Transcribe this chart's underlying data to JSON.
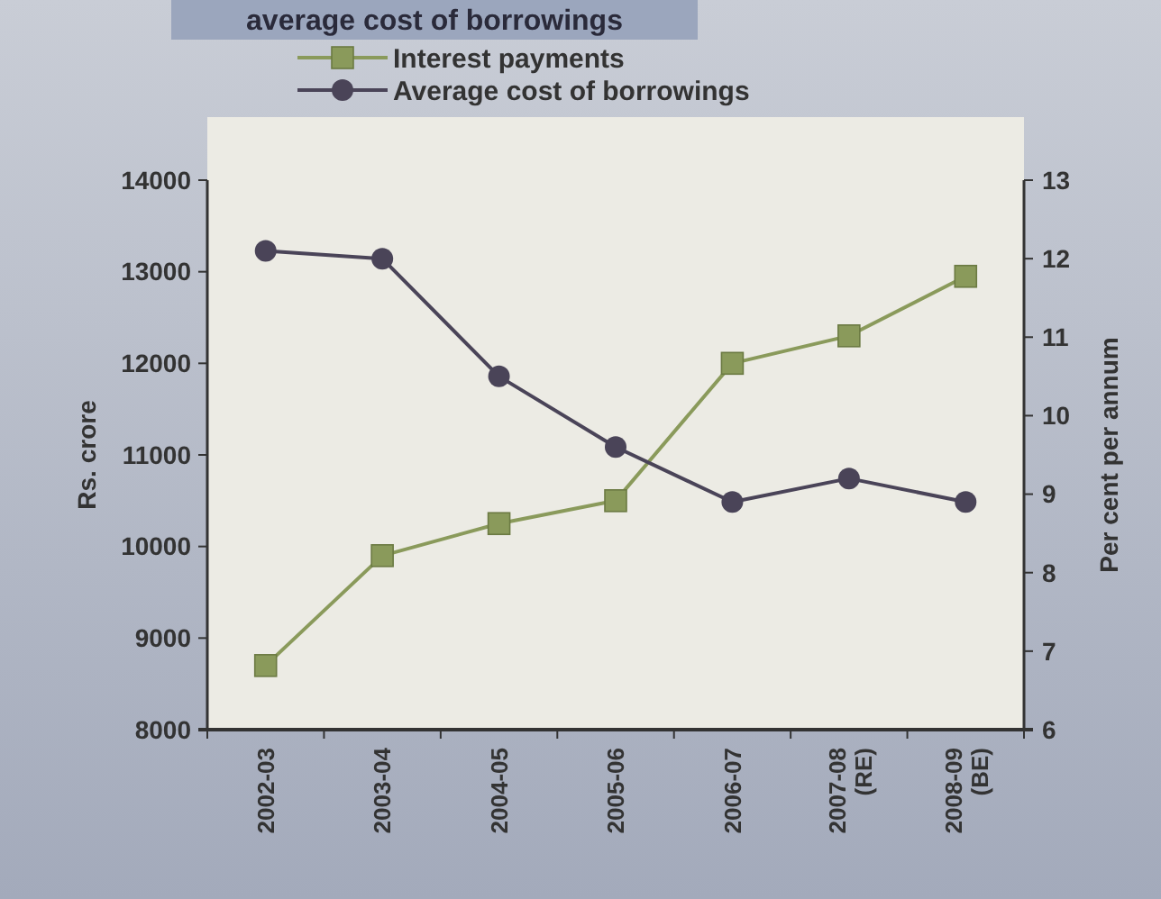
{
  "chart_data": {
    "type": "line",
    "title": "average cost of borrowings",
    "ylabel": "Rs. crore",
    "y2label": "Per cent per annum",
    "categories": [
      "2002-03",
      "2003-04",
      "2004-05",
      "2005-06",
      "2006-07",
      "2007-08\n(RE)",
      "2008-09\n(BE)"
    ],
    "series": [
      {
        "name": "Interest payments",
        "color": "#8a9a5b",
        "marker": "square",
        "values": [
          8700,
          9900,
          10250,
          10500,
          12000,
          12300,
          12950
        ]
      },
      {
        "name": "Average cost of borrowings",
        "color": "#4a4458",
        "marker": "circle",
        "axis": "y2",
        "values": [
          12.1,
          12.0,
          10.5,
          9.6,
          8.9,
          9.2,
          8.9
        ]
      }
    ],
    "ylim": [
      8000,
      14000
    ],
    "yticks": [
      8000,
      9000,
      10000,
      11000,
      12000,
      13000,
      14000
    ],
    "y2lim": [
      6,
      13
    ],
    "y2ticks": [
      6,
      7,
      8,
      9,
      10,
      11,
      12,
      13
    ],
    "grid": false,
    "legend": "top"
  }
}
